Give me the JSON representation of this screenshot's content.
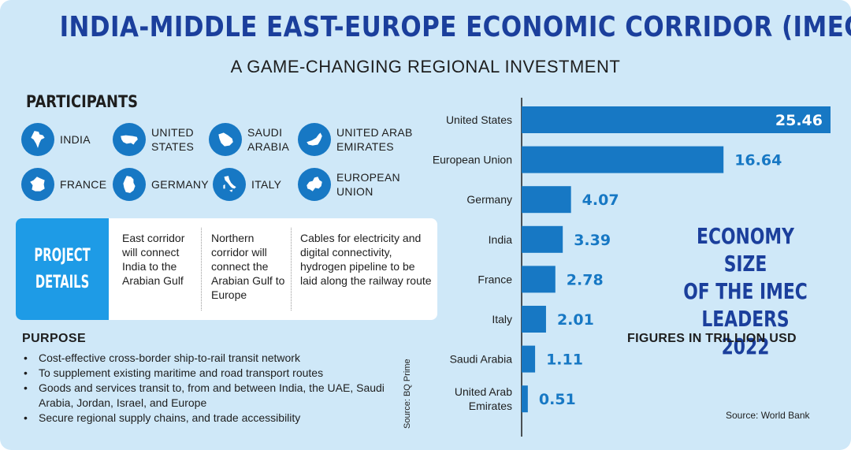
{
  "header": {
    "title": "INDIA-MIDDLE EAST-EUROPE ECONOMIC CORRIDOR (IMEC)",
    "subtitle": "A GAME-CHANGING REGIONAL INVESTMENT"
  },
  "participants": {
    "heading": "PARTICIPANTS",
    "items": [
      {
        "line1": "INDIA",
        "line2": "",
        "icon": "india-map-icon"
      },
      {
        "line1": "UNITED",
        "line2": "STATES",
        "icon": "usa-map-icon"
      },
      {
        "line1": "SAUDI",
        "line2": "ARABIA",
        "icon": "saudi-arabia-map-icon"
      },
      {
        "line1": "UNITED ARAB",
        "line2": "EMIRATES",
        "icon": "uae-map-icon"
      },
      {
        "line1": "FRANCE",
        "line2": "",
        "icon": "france-map-icon"
      },
      {
        "line1": "GERMANY",
        "line2": "",
        "icon": "germany-map-icon"
      },
      {
        "line1": "ITALY",
        "line2": "",
        "icon": "italy-map-icon"
      },
      {
        "line1": "EUROPEAN",
        "line2": "UNION",
        "icon": "europe-map-icon"
      }
    ]
  },
  "project_details": {
    "label_line1": "PROJECT",
    "label_line2": "DETAILS",
    "items": [
      "East corridor will connect India to the Arabian Gulf",
      "Northern corridor will connect the Arabian Gulf to Europe",
      "Cables for electricity and digital connectivity, hydrogen pipeline to be laid along the railway route"
    ]
  },
  "purpose": {
    "heading": "PURPOSE",
    "items": [
      "Cost-effective cross-border ship-to-rail transit network",
      "To supplement existing maritime and road transport routes",
      "Goods and services transit to, from and between India, the UAE, Saudi  Arabia, Jordan, Israel, and Europe",
      "Secure regional supply chains, and trade accessibility"
    ],
    "source": "Source: BQ Prime"
  },
  "colors": {
    "bar": "#1778c4",
    "value_text": "#1778c4",
    "title_blue": "#1b3f9c",
    "background": "#cfe8f8"
  },
  "chart_data": {
    "type": "bar",
    "orientation": "horizontal",
    "title": "ECONOMY SIZE OF THE IMEC LEADERS 2022",
    "title_lines": [
      "ECONOMY SIZE",
      "OF THE IMEC",
      "LEADERS 2022"
    ],
    "unit_label": "FIGURES IN TRILLION USD",
    "source": "Source: World Bank",
    "categories": [
      "United States",
      "European Union",
      "Germany",
      "India",
      "France",
      "Italy",
      "Saudi Arabia",
      "United Arab Emirates"
    ],
    "category_lines": [
      [
        "United States"
      ],
      [
        "European Union"
      ],
      [
        "Germany"
      ],
      [
        "India"
      ],
      [
        "France"
      ],
      [
        "Italy"
      ],
      [
        "Saudi Arabia"
      ],
      [
        "United Arab",
        "Emirates"
      ]
    ],
    "values": [
      25.46,
      16.64,
      4.07,
      3.39,
      2.78,
      2.01,
      1.11,
      0.51
    ],
    "value_labels": [
      "25.46",
      "16.64",
      "4.07",
      "3.39",
      "2.78",
      "2.01",
      "1.11",
      "0.51"
    ],
    "xlim": [
      0,
      25.46
    ],
    "grid": false,
    "legend": "none"
  }
}
